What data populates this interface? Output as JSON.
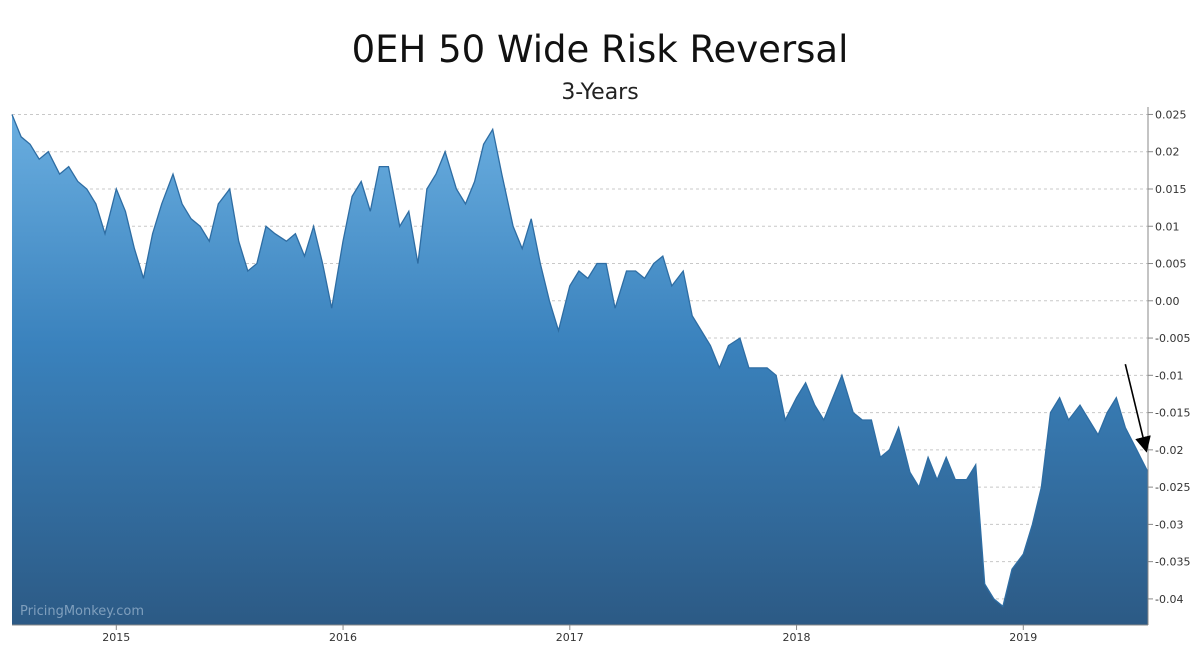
{
  "chart_data": {
    "type": "area",
    "title": "0EH 50 Wide Risk Reversal",
    "subtitle": "3-Years",
    "xlabel": "",
    "ylabel": "",
    "watermark": "PricingMonkey.com",
    "y_axis_side": "right",
    "grid": "horizontal-dashed",
    "ylim": [
      -0.0435,
      0.026
    ],
    "xlim": [
      2014.54,
      2019.55
    ],
    "y_ticks": [
      0.025,
      0.02,
      0.015,
      0.01,
      0.005,
      0.0,
      -0.005,
      -0.01,
      -0.015,
      -0.02,
      -0.025,
      -0.03,
      -0.035,
      -0.04
    ],
    "y_tick_labels": [
      "0.025",
      "0.02",
      "0.015",
      "0.01",
      "0.005",
      "0.00",
      "-0.005",
      "-0.01",
      "-0.015",
      "-0.02",
      "-0.025",
      "-0.03",
      "-0.035",
      "-0.04"
    ],
    "x_ticks": [
      2015.0,
      2016.0,
      2017.0,
      2018.0,
      2019.0
    ],
    "x_tick_labels": [
      "2015",
      "2016",
      "2017",
      "2018",
      "2019"
    ],
    "colors": {
      "area_top": "#6aaee0",
      "area_mid": "#3a82bd",
      "area_bottom": "#2c5a85",
      "line": "#2e6da3",
      "arrow": "#000000"
    },
    "annotation": {
      "type": "arrow",
      "from": [
        2019.45,
        -0.0085
      ],
      "to": [
        2019.55,
        -0.0205
      ]
    },
    "series": [
      {
        "x": [
          2014.54,
          2014.58,
          2014.62,
          2014.66,
          2014.7,
          2014.75,
          2014.79,
          2014.83,
          2014.87,
          2014.91,
          2014.95,
          2015.0,
          2015.04,
          2015.08,
          2015.12,
          2015.16,
          2015.2,
          2015.25,
          2015.29,
          2015.33,
          2015.37,
          2015.41,
          2015.45,
          2015.5,
          2015.54,
          2015.58,
          2015.62,
          2015.66,
          2015.7,
          2015.75,
          2015.79,
          2015.83,
          2015.87,
          2015.91,
          2015.95,
          2016.0,
          2016.04,
          2016.08,
          2016.12,
          2016.16,
          2016.2,
          2016.25,
          2016.29,
          2016.33,
          2016.37,
          2016.41,
          2016.45,
          2016.5,
          2016.54,
          2016.58,
          2016.62,
          2016.66,
          2016.7,
          2016.75,
          2016.79,
          2016.83,
          2016.87,
          2016.91,
          2016.95,
          2017.0,
          2017.04,
          2017.08,
          2017.12,
          2017.16,
          2017.2,
          2017.25,
          2017.29,
          2017.33,
          2017.37,
          2017.41,
          2017.45,
          2017.5,
          2017.54,
          2017.58,
          2017.62,
          2017.66,
          2017.7,
          2017.75,
          2017.79,
          2017.83,
          2017.87,
          2017.91,
          2017.95,
          2018.0,
          2018.04,
          2018.08,
          2018.12,
          2018.16,
          2018.2,
          2018.25,
          2018.29,
          2018.33,
          2018.37,
          2018.41,
          2018.45,
          2018.5,
          2018.54,
          2018.58,
          2018.62,
          2018.66,
          2018.7,
          2018.75,
          2018.79,
          2018.83,
          2018.87,
          2018.91,
          2018.95,
          2019.0,
          2019.04,
          2019.08,
          2019.12,
          2019.16,
          2019.2,
          2019.25,
          2019.29,
          2019.33,
          2019.37,
          2019.41,
          2019.45,
          2019.5,
          2019.55
        ],
        "y": [
          0.025,
          0.022,
          0.021,
          0.019,
          0.02,
          0.017,
          0.018,
          0.016,
          0.015,
          0.013,
          0.009,
          0.015,
          0.012,
          0.007,
          0.003,
          0.009,
          0.013,
          0.017,
          0.013,
          0.011,
          0.01,
          0.008,
          0.013,
          0.015,
          0.008,
          0.004,
          0.005,
          0.01,
          0.009,
          0.008,
          0.009,
          0.006,
          0.01,
          0.005,
          -0.001,
          0.008,
          0.014,
          0.016,
          0.012,
          0.018,
          0.018,
          0.01,
          0.012,
          0.005,
          0.015,
          0.017,
          0.02,
          0.015,
          0.013,
          0.016,
          0.021,
          0.023,
          0.017,
          0.01,
          0.007,
          0.011,
          0.005,
          0.0,
          -0.004,
          0.002,
          0.004,
          0.003,
          0.005,
          0.005,
          -0.001,
          0.004,
          0.004,
          0.003,
          0.005,
          0.006,
          0.002,
          0.004,
          -0.002,
          -0.004,
          -0.006,
          -0.009,
          -0.006,
          -0.005,
          -0.009,
          -0.009,
          -0.009,
          -0.01,
          -0.016,
          -0.013,
          -0.011,
          -0.014,
          -0.016,
          -0.013,
          -0.01,
          -0.015,
          -0.016,
          -0.016,
          -0.021,
          -0.02,
          -0.017,
          -0.023,
          -0.025,
          -0.021,
          -0.024,
          -0.021,
          -0.024,
          -0.024,
          -0.022,
          -0.038,
          -0.04,
          -0.041,
          -0.036,
          -0.034,
          -0.03,
          -0.025,
          -0.015,
          -0.013,
          -0.016,
          -0.014,
          -0.016,
          -0.018,
          -0.015,
          -0.013,
          -0.017,
          -0.02,
          -0.023
        ]
      }
    ]
  }
}
